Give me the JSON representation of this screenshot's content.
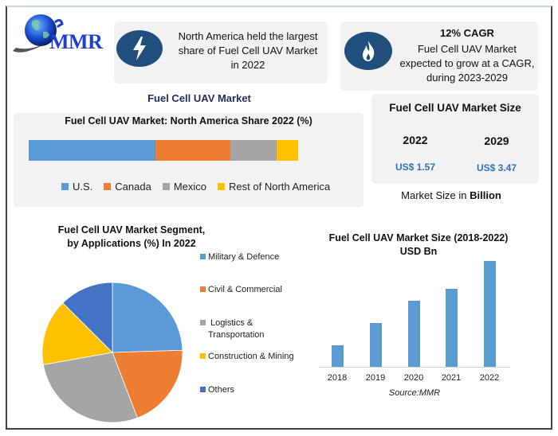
{
  "logo": {
    "text": "MMR",
    "icon": "globe-icon"
  },
  "highlight_cards": [
    {
      "icon": "lightning-bolt-icon",
      "heading": "",
      "lines": [
        "North America held the largest",
        "share of Fuel Cell UAV Market",
        "in 2022"
      ]
    },
    {
      "icon": "flame-icon",
      "heading": "12% CAGR",
      "lines": [
        "Fuel Cell UAV Market",
        "expected to grow at a CAGR,",
        "during 2023-2029"
      ]
    }
  ],
  "section_title": "Fuel Cell UAV Market",
  "market_size_card": {
    "title": "Fuel Cell UAV Market Size",
    "years": [
      "2022",
      "2029"
    ],
    "values": [
      "US$ 1.57",
      "US$ 3.47"
    ],
    "caption_prefix": "Market Size in ",
    "caption_bold": "Billion"
  },
  "colors": {
    "blue": "#5b9bd5",
    "orange": "#ed7d31",
    "gray": "#a5a5a5",
    "yellow": "#ffc000",
    "dark_blue": "#4472c4",
    "icon_bg": "#204f7e",
    "value_blue": "#2e75b6",
    "panel_bg": "#f2f2f4"
  },
  "chart_data": [
    {
      "type": "bar",
      "subtype": "stacked-horizontal",
      "title": "Fuel Cell UAV Market: North America Share 2022 (%)",
      "categories": [
        "North America"
      ],
      "series": [
        {
          "name": "U.S.",
          "values": [
            47
          ],
          "color": "#5b9bd5"
        },
        {
          "name": "Canada",
          "values": [
            28
          ],
          "color": "#ed7d31"
        },
        {
          "name": "Mexico",
          "values": [
            17
          ],
          "color": "#a5a5a5"
        },
        {
          "name": "Rest of North America",
          "values": [
            8
          ],
          "color": "#ffc000"
        }
      ],
      "legend_position": "bottom",
      "grid": false
    },
    {
      "type": "pie",
      "title": "Fuel Cell UAV Market Segment, by Applications (%) In 2022",
      "title_lines": [
        "Fuel Cell UAV Market Segment,",
        "by Applications  (%) In 2022"
      ],
      "labels": [
        "Military & Defence",
        "Civil & Commercial",
        "Logistics & Transportation",
        "Construction & Mining",
        "Others"
      ],
      "legend_labels": [
        [
          "Military & Defence"
        ],
        [
          "Civil & Commercial"
        ],
        [
          " Logistics &",
          "Transportation"
        ],
        [
          "Construction & Mining"
        ],
        [
          "Others"
        ]
      ],
      "values": [
        24.5,
        19.7,
        28.0,
        15.3,
        12.5
      ],
      "colors": [
        "#5b9bd5",
        "#ed7d31",
        "#a5a5a5",
        "#ffc000",
        "#4472c4"
      ],
      "legend_position": "right"
    },
    {
      "type": "bar",
      "title": "Fuel Cell UAV Market Size (2018-2022) USD Bn",
      "title_lines": [
        "Fuel Cell UAV Market Size (2018-2022)",
        "USD Bn"
      ],
      "categories": [
        "2018",
        "2019",
        "2020",
        "2021",
        "2022"
      ],
      "values": [
        0.33,
        0.66,
        0.98,
        1.16,
        1.57
      ],
      "xlabel": "",
      "ylabel": "",
      "ylim": [
        0,
        1.6
      ],
      "grid": false,
      "color": "#5b9bd5",
      "source": "Source:MMR"
    }
  ]
}
